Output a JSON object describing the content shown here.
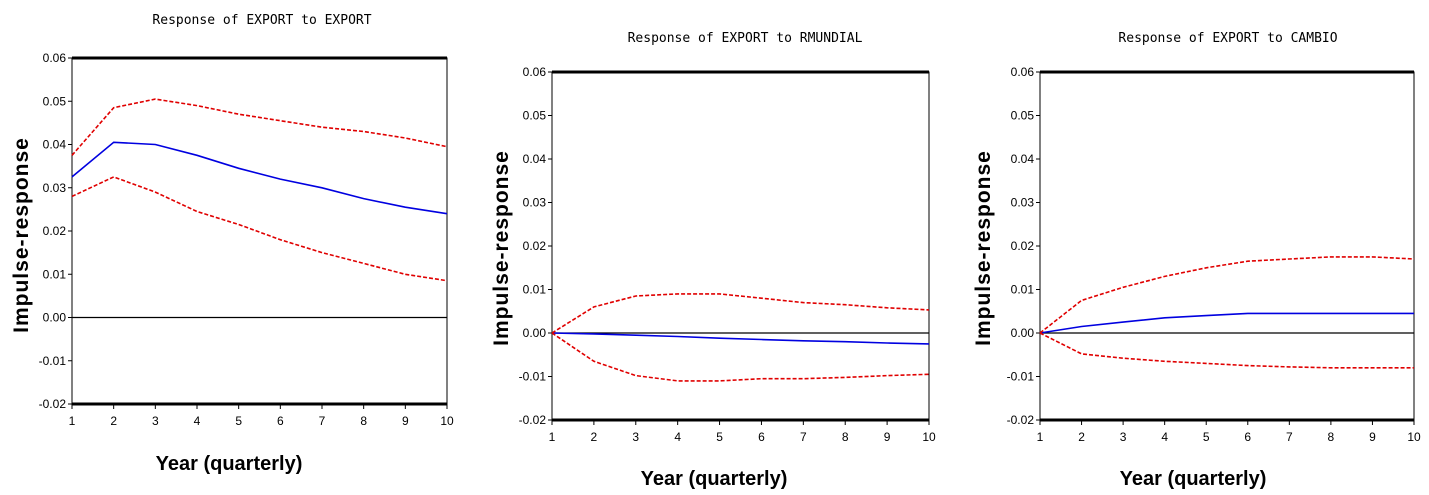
{
  "colors": {
    "response": "#0000e0",
    "band": "#e00000",
    "zero_line": "#000000",
    "frame": "#000000"
  },
  "chart_data": [
    {
      "type": "line",
      "title": "Response of EXPORT to EXPORT",
      "xlabel": "Year (quarterly)",
      "ylabel": "Impulse-response",
      "xlim": [
        1,
        10
      ],
      "ylim": [
        -0.02,
        0.06
      ],
      "x_ticks": [
        "1",
        "2",
        "3",
        "4",
        "5",
        "6",
        "7",
        "8",
        "9",
        "10"
      ],
      "y_ticks": [
        "0.06",
        "0.05",
        "0.04",
        "0.03",
        "0.02",
        "0.01",
        "0.00",
        "-0.01",
        "-0.02"
      ],
      "x": [
        1,
        2,
        3,
        4,
        5,
        6,
        7,
        8,
        9,
        10
      ],
      "series": [
        {
          "values": [
            0.0325,
            0.0405,
            0.04,
            0.0375,
            0.0345,
            0.032,
            0.03,
            0.0275,
            0.0255,
            0.024
          ]
        },
        {
          "values": [
            0.0375,
            0.0485,
            0.0505,
            0.049,
            0.047,
            0.0455,
            0.044,
            0.043,
            0.0415,
            0.0395
          ]
        },
        {
          "values": [
            0.028,
            0.0325,
            0.029,
            0.0245,
            0.0215,
            0.018,
            0.015,
            0.0125,
            0.01,
            0.0085
          ]
        }
      ]
    },
    {
      "type": "line",
      "title": "Response of EXPORT to RMUNDIAL",
      "xlabel": "Year (quarterly)",
      "ylabel": "Impulse-response",
      "xlim": [
        1,
        10
      ],
      "ylim": [
        -0.02,
        0.06
      ],
      "x_ticks": [
        "1",
        "2",
        "3",
        "4",
        "5",
        "6",
        "7",
        "8",
        "9",
        "10"
      ],
      "y_ticks": [
        "0.06",
        "0.05",
        "0.04",
        "0.03",
        "0.02",
        "0.01",
        "0.00",
        "-0.01",
        "-0.02"
      ],
      "x": [
        1,
        2,
        3,
        4,
        5,
        6,
        7,
        8,
        9,
        10
      ],
      "series": [
        {
          "values": [
            0.0,
            -0.0002,
            -0.0005,
            -0.0008,
            -0.0012,
            -0.0015,
            -0.0018,
            -0.002,
            -0.0023,
            -0.0025
          ]
        },
        {
          "values": [
            0.0,
            0.006,
            0.0085,
            0.009,
            0.009,
            0.008,
            0.007,
            0.0065,
            0.0058,
            0.0053
          ]
        },
        {
          "values": [
            0.0,
            -0.0065,
            -0.0098,
            -0.011,
            -0.011,
            -0.0105,
            -0.0105,
            -0.0102,
            -0.0098,
            -0.0095
          ]
        }
      ]
    },
    {
      "type": "line",
      "title": "Response of EXPORT to CAMBIO",
      "xlabel": "Year (quarterly)",
      "ylabel": "Impulse-response",
      "xlim": [
        1,
        10
      ],
      "ylim": [
        -0.02,
        0.06
      ],
      "x_ticks": [
        "1",
        "2",
        "3",
        "4",
        "5",
        "6",
        "7",
        "8",
        "9",
        "10"
      ],
      "y_ticks": [
        "0.06",
        "0.05",
        "0.04",
        "0.03",
        "0.02",
        "0.01",
        "0.00",
        "-0.01",
        "-0.02"
      ],
      "x": [
        1,
        2,
        3,
        4,
        5,
        6,
        7,
        8,
        9,
        10
      ],
      "series": [
        {
          "values": [
            0.0,
            0.0015,
            0.0025,
            0.0035,
            0.004,
            0.0045,
            0.0045,
            0.0045,
            0.0045,
            0.0045
          ]
        },
        {
          "values": [
            0.0,
            0.0075,
            0.0105,
            0.013,
            0.015,
            0.0165,
            0.017,
            0.0175,
            0.0175,
            0.017
          ]
        },
        {
          "values": [
            0.0,
            -0.0048,
            -0.0058,
            -0.0065,
            -0.007,
            -0.0075,
            -0.0078,
            -0.008,
            -0.008,
            -0.008
          ]
        }
      ]
    }
  ]
}
